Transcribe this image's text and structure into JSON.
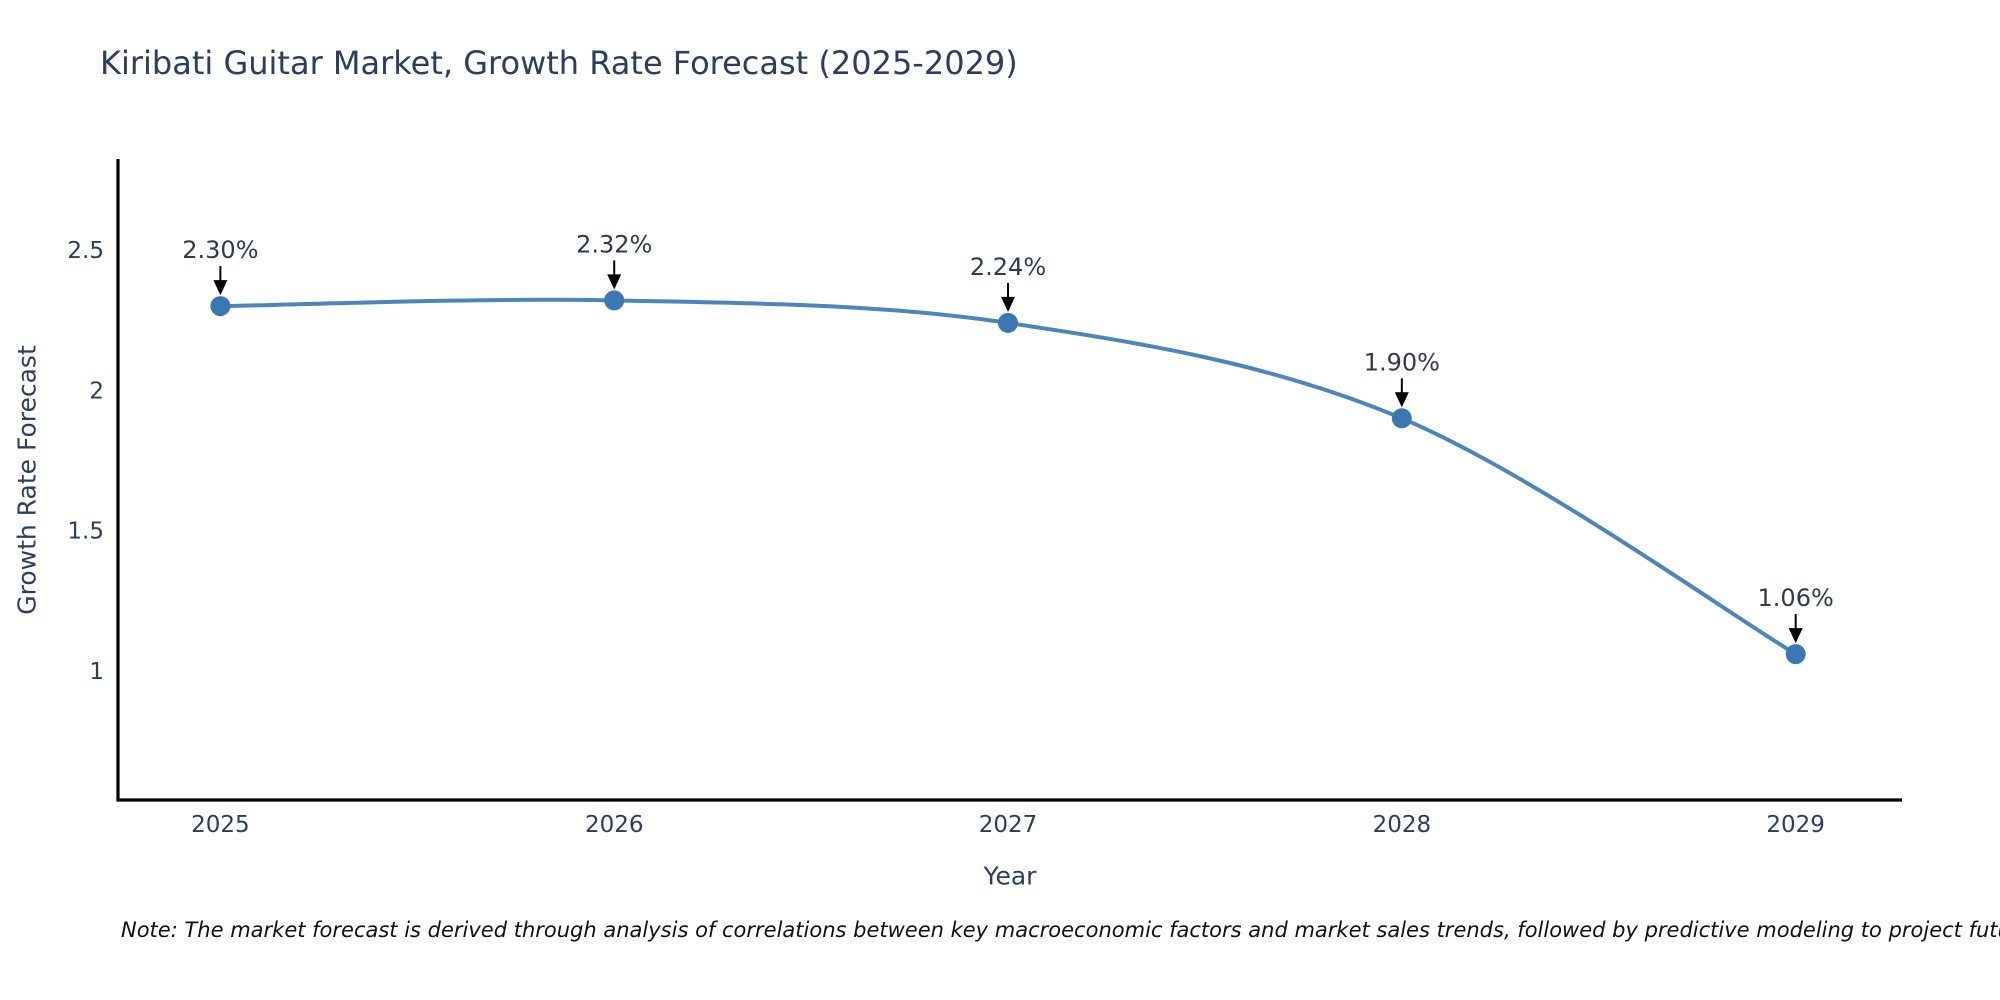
{
  "chart_data": {
    "type": "line",
    "title": "Kiribati Guitar Market, Growth Rate Forecast (2025-2029)",
    "xlabel": "Year",
    "ylabel": "Growth Rate Forecast",
    "x": [
      2025,
      2026,
      2027,
      2028,
      2029
    ],
    "y": [
      2.3,
      2.32,
      2.24,
      1.9,
      1.06
    ],
    "point_labels": [
      "2.30%",
      "2.32%",
      "2.24%",
      "1.90%",
      "1.06%"
    ],
    "x_tick_labels": [
      "2025",
      "2026",
      "2027",
      "2028",
      "2029"
    ],
    "x_tick_values": [
      2025,
      2026,
      2027,
      2028,
      2029
    ],
    "y_tick_labels": [
      "1",
      "1.5",
      "2",
      "2.5"
    ],
    "y_tick_values": [
      1,
      1.5,
      2,
      2.5
    ],
    "xlim": [
      2024.74,
      2029.27
    ],
    "ylim": [
      0.54,
      2.824
    ],
    "grid": false,
    "legend": "none",
    "line_shape": "spline",
    "line_color": "#4d85ba",
    "marker_color": "#3b78b3",
    "axis_color": "#000000",
    "text_color": "#2a3f5f",
    "annotation_text_color": "#2e3a4e",
    "annotation_arrow_color": "#000000"
  },
  "note": {
    "text": "Note: The market forecast is derived through analysis of correlations between key macroeconomic factors and market sales trends, followed by predictive modeling to project future sales"
  }
}
